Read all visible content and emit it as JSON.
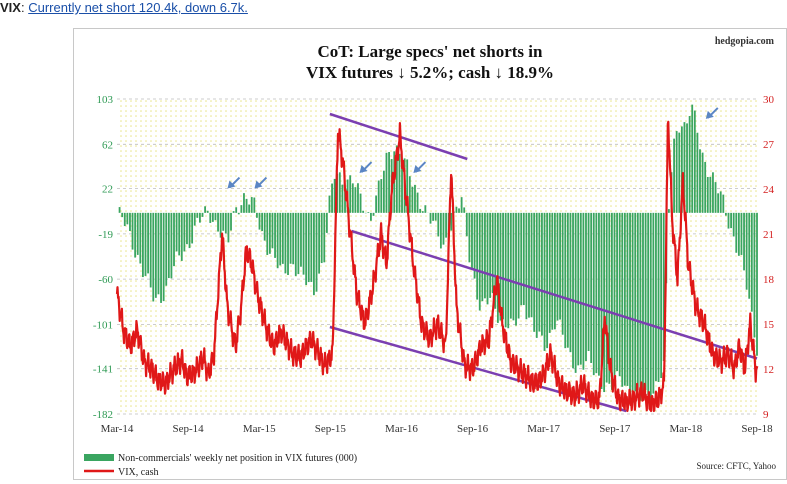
{
  "caption": {
    "label": "VIX",
    "separator": ":",
    "link_text": "Currently net short 120.4k, down 6.7k."
  },
  "chart_data": {
    "type": "bar+line",
    "title_line1": "CoT: Large specs' net shorts in",
    "title_line2": "VIX futures ↓ 5.2%; cash ↓ 18.9%",
    "watermark": "hedgopia.com",
    "source": "Source: CFTC, Yahoo",
    "x_ticks": [
      "Mar-14",
      "Sep-14",
      "Mar-15",
      "Sep-15",
      "Mar-16",
      "Sep-16",
      "Mar-17",
      "Sep-17",
      "Mar-18",
      "Sep-18"
    ],
    "left_axis": {
      "ticks": [
        103,
        62,
        22,
        -19,
        -60,
        -101,
        -141,
        -182
      ],
      "range": [
        -182,
        103
      ],
      "color": "#2e9a54"
    },
    "right_axis": {
      "ticks": [
        30,
        27,
        24,
        21,
        18,
        15,
        12,
        9
      ],
      "range": [
        9,
        30
      ],
      "color": "#d42020"
    },
    "legend": {
      "bars": "Non-commercials' weekly net position in VIX futures (000)",
      "line": "VIX, cash"
    },
    "colors": {
      "bars": "#3aa560",
      "line": "#e01818",
      "channel": "#7b3fb0",
      "arrow": "#5b86c4",
      "grid": "#bdbdbd"
    },
    "net_position_keypoints": [
      [
        2014.0,
        0
      ],
      [
        2014.05,
        -8
      ],
      [
        2014.12,
        -28
      ],
      [
        2014.2,
        -55
      ],
      [
        2014.28,
        -80
      ],
      [
        2014.36,
        -70
      ],
      [
        2014.44,
        -45
      ],
      [
        2014.52,
        -30
      ],
      [
        2014.6,
        -10
      ],
      [
        2014.68,
        2
      ],
      [
        2014.76,
        -15
      ],
      [
        2014.82,
        -30
      ],
      [
        2014.88,
        5
      ],
      [
        2014.95,
        15
      ],
      [
        2015.02,
        5
      ],
      [
        2015.08,
        -20
      ],
      [
        2015.14,
        -35
      ],
      [
        2015.22,
        -55
      ],
      [
        2015.3,
        -45
      ],
      [
        2015.38,
        -60
      ],
      [
        2015.46,
        -70
      ],
      [
        2015.54,
        -40
      ],
      [
        2015.58,
        10
      ],
      [
        2015.62,
        38
      ],
      [
        2015.68,
        30
      ],
      [
        2015.75,
        28
      ],
      [
        2015.82,
        10
      ],
      [
        2015.88,
        -5
      ],
      [
        2015.94,
        20
      ],
      [
        2016.0,
        48
      ],
      [
        2016.06,
        62
      ],
      [
        2016.12,
        50
      ],
      [
        2016.18,
        30
      ],
      [
        2016.26,
        10
      ],
      [
        2016.34,
        -10
      ],
      [
        2016.42,
        -30
      ],
      [
        2016.5,
        -5
      ],
      [
        2016.56,
        12
      ],
      [
        2016.62,
        -40
      ],
      [
        2016.7,
        -90
      ],
      [
        2016.78,
        -75
      ],
      [
        2016.86,
        -100
      ],
      [
        2016.94,
        -105
      ],
      [
        2017.02,
        -80
      ],
      [
        2017.1,
        -110
      ],
      [
        2017.18,
        -120
      ],
      [
        2017.26,
        -95
      ],
      [
        2017.34,
        -125
      ],
      [
        2017.42,
        -140
      ],
      [
        2017.5,
        -135
      ],
      [
        2017.58,
        -150
      ],
      [
        2017.66,
        -160
      ],
      [
        2017.74,
        -148
      ],
      [
        2017.82,
        -165
      ],
      [
        2017.9,
        -170
      ],
      [
        2017.98,
        -160
      ],
      [
        2018.06,
        -140
      ],
      [
        2018.1,
        20
      ],
      [
        2018.14,
        70
      ],
      [
        2018.18,
        85
      ],
      [
        2018.22,
        75
      ],
      [
        2018.26,
        95
      ],
      [
        2018.3,
        80
      ],
      [
        2018.34,
        55
      ],
      [
        2018.42,
        30
      ],
      [
        2018.5,
        10
      ],
      [
        2018.56,
        -15
      ],
      [
        2018.62,
        -40
      ],
      [
        2018.68,
        -70
      ],
      [
        2018.72,
        -100
      ],
      [
        2018.75,
        -120
      ]
    ],
    "vix_keypoints": [
      [
        2014.0,
        17
      ],
      [
        2014.05,
        14.5
      ],
      [
        2014.1,
        13.5
      ],
      [
        2014.15,
        14.6
      ],
      [
        2014.2,
        12.5
      ],
      [
        2014.26,
        12
      ],
      [
        2014.3,
        11.3
      ],
      [
        2014.36,
        11
      ],
      [
        2014.42,
        12
      ],
      [
        2014.48,
        12.6
      ],
      [
        2014.52,
        11.5
      ],
      [
        2014.58,
        11.8
      ],
      [
        2014.64,
        12.8
      ],
      [
        2014.68,
        11.6
      ],
      [
        2014.72,
        13
      ],
      [
        2014.78,
        21
      ],
      [
        2014.82,
        16
      ],
      [
        2014.88,
        13.5
      ],
      [
        2014.92,
        16
      ],
      [
        2014.96,
        20
      ],
      [
        2015.0,
        19
      ],
      [
        2015.04,
        17
      ],
      [
        2015.1,
        15
      ],
      [
        2015.16,
        13.5
      ],
      [
        2015.22,
        14.5
      ],
      [
        2015.3,
        13
      ],
      [
        2015.36,
        12.8
      ],
      [
        2015.44,
        14
      ],
      [
        2015.5,
        13
      ],
      [
        2015.54,
        12.2
      ],
      [
        2015.6,
        13
      ],
      [
        2015.64,
        28
      ],
      [
        2015.68,
        25.5
      ],
      [
        2015.72,
        22
      ],
      [
        2015.78,
        17
      ],
      [
        2015.84,
        15
      ],
      [
        2015.9,
        17.5
      ],
      [
        2015.96,
        21
      ],
      [
        2016.0,
        19
      ],
      [
        2016.04,
        24
      ],
      [
        2016.1,
        27.6
      ],
      [
        2016.14,
        24
      ],
      [
        2016.2,
        19
      ],
      [
        2016.26,
        15
      ],
      [
        2016.32,
        14
      ],
      [
        2016.38,
        15
      ],
      [
        2016.44,
        13.5
      ],
      [
        2016.48,
        25.5
      ],
      [
        2016.52,
        16
      ],
      [
        2016.58,
        12.2
      ],
      [
        2016.64,
        12
      ],
      [
        2016.7,
        13.5
      ],
      [
        2016.76,
        14
      ],
      [
        2016.82,
        18
      ],
      [
        2016.86,
        15
      ],
      [
        2016.92,
        12.5
      ],
      [
        2016.98,
        12
      ],
      [
        2017.04,
        11.5
      ],
      [
        2017.1,
        11
      ],
      [
        2017.16,
        11.5
      ],
      [
        2017.22,
        13
      ],
      [
        2017.28,
        11
      ],
      [
        2017.34,
        10.5
      ],
      [
        2017.4,
        10.2
      ],
      [
        2017.46,
        11
      ],
      [
        2017.52,
        10
      ],
      [
        2017.58,
        9.9
      ],
      [
        2017.62,
        15.5
      ],
      [
        2017.66,
        12
      ],
      [
        2017.72,
        10
      ],
      [
        2017.78,
        9.8
      ],
      [
        2017.84,
        10
      ],
      [
        2017.9,
        10.5
      ],
      [
        2017.96,
        9.6
      ],
      [
        2018.02,
        10
      ],
      [
        2018.06,
        11
      ],
      [
        2018.09,
        29
      ],
      [
        2018.12,
        22
      ],
      [
        2018.16,
        18
      ],
      [
        2018.2,
        24.5
      ],
      [
        2018.24,
        19
      ],
      [
        2018.3,
        16
      ],
      [
        2018.36,
        15
      ],
      [
        2018.42,
        13
      ],
      [
        2018.48,
        12.5
      ],
      [
        2018.54,
        13
      ],
      [
        2018.58,
        12
      ],
      [
        2018.62,
        13.5
      ],
      [
        2018.66,
        12
      ],
      [
        2018.7,
        15
      ],
      [
        2018.74,
        12
      ]
    ]
  }
}
